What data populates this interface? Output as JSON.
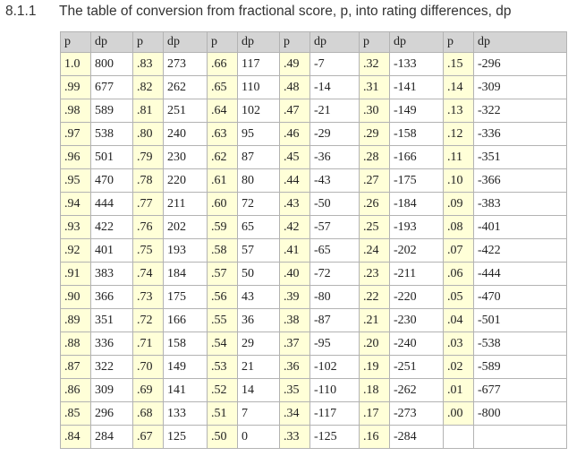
{
  "heading": {
    "number": "8.1.1",
    "title": "The table of conversion from fractional score, p, into rating differences, dp"
  },
  "table": {
    "headers": [
      "p",
      "dp",
      "p",
      "dp",
      "p",
      "dp",
      "p",
      "dp",
      "p",
      "dp",
      "p",
      "dp"
    ],
    "rows": [
      [
        "1.0",
        "800",
        ".83",
        "273",
        ".66",
        "117",
        ".49",
        "-7",
        ".32",
        "-133",
        ".15",
        "-296"
      ],
      [
        ".99",
        "677",
        ".82",
        "262",
        ".65",
        "110",
        ".48",
        "-14",
        ".31",
        "-141",
        ".14",
        "-309"
      ],
      [
        ".98",
        "589",
        ".81",
        "251",
        ".64",
        "102",
        ".47",
        "-21",
        ".30",
        "-149",
        ".13",
        "-322"
      ],
      [
        ".97",
        "538",
        ".80",
        "240",
        ".63",
        "95",
        ".46",
        "-29",
        ".29",
        "-158",
        ".12",
        "-336"
      ],
      [
        ".96",
        "501",
        ".79",
        "230",
        ".62",
        "87",
        ".45",
        "-36",
        ".28",
        "-166",
        ".11",
        "-351"
      ],
      [
        ".95",
        "470",
        ".78",
        "220",
        ".61",
        "80",
        ".44",
        "-43",
        ".27",
        "-175",
        ".10",
        "-366"
      ],
      [
        ".94",
        "444",
        ".77",
        "211",
        ".60",
        "72",
        ".43",
        "-50",
        ".26",
        "-184",
        ".09",
        "-383"
      ],
      [
        ".93",
        "422",
        ".76",
        "202",
        ".59",
        "65",
        ".42",
        "-57",
        ".25",
        "-193",
        ".08",
        "-401"
      ],
      [
        ".92",
        "401",
        ".75",
        "193",
        ".58",
        "57",
        ".41",
        "-65",
        ".24",
        "-202",
        ".07",
        "-422"
      ],
      [
        ".91",
        "383",
        ".74",
        "184",
        ".57",
        "50",
        ".40",
        "-72",
        ".23",
        "-211",
        ".06",
        "-444"
      ],
      [
        ".90",
        "366",
        ".73",
        "175",
        ".56",
        "43",
        ".39",
        "-80",
        ".22",
        "-220",
        ".05",
        "-470"
      ],
      [
        ".89",
        "351",
        ".72",
        "166",
        ".55",
        "36",
        ".38",
        "-87",
        ".21",
        "-230",
        ".04",
        "-501"
      ],
      [
        ".88",
        "336",
        ".71",
        "158",
        ".54",
        "29",
        ".37",
        "-95",
        ".20",
        "-240",
        ".03",
        "-538"
      ],
      [
        ".87",
        "322",
        ".70",
        "149",
        ".53",
        "21",
        ".36",
        "-102",
        ".19",
        "-251",
        ".02",
        "-589"
      ],
      [
        ".86",
        "309",
        ".69",
        "141",
        ".52",
        "14",
        ".35",
        "-110",
        ".18",
        "-262",
        ".01",
        "-677"
      ],
      [
        ".85",
        "296",
        ".68",
        "133",
        ".51",
        "7",
        ".34",
        "-117",
        ".17",
        "-273",
        ".00",
        "-800"
      ],
      [
        ".84",
        "284",
        ".67",
        "125",
        ".50",
        "0",
        ".33",
        "-125",
        ".16",
        "-284",
        "",
        ""
      ]
    ]
  }
}
